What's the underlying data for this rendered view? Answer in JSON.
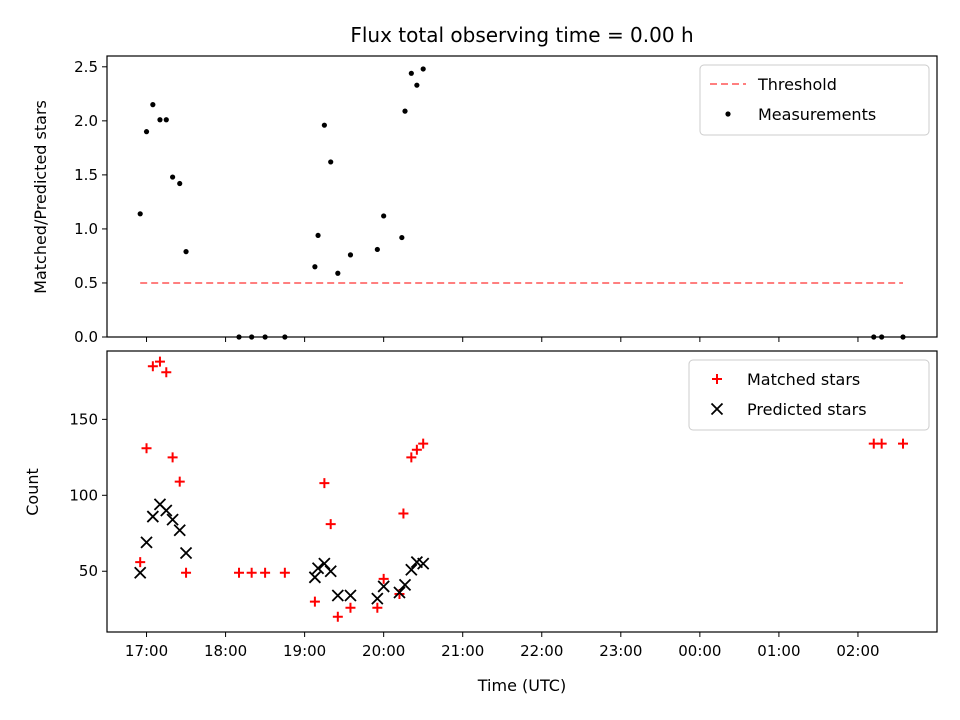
{
  "chart_data": {
    "title": "Flux total observing time = 0.00 h",
    "xlabel": "Time (UTC)",
    "x_unit": "hours",
    "x_range": [
      16.5,
      27.0
    ],
    "x_tick_values": [
      17,
      18,
      19,
      20,
      21,
      22,
      23,
      24,
      25,
      26
    ],
    "x_tick_labels": [
      "17:00",
      "18:00",
      "19:00",
      "20:00",
      "21:00",
      "22:00",
      "23:00",
      "00:00",
      "01:00",
      "02:00"
    ],
    "panels": [
      {
        "type": "scatter",
        "ylabel": "Matched/Predicted stars",
        "ylim": [
          0,
          2.6
        ],
        "yticks": [
          0,
          0.5,
          1.0,
          1.5,
          2.0,
          2.5
        ],
        "ytick_labels": [
          "0.0",
          "0.5",
          "1.0",
          "1.5",
          "2.0",
          "2.5"
        ],
        "legend_position": "upper-right",
        "series": [
          {
            "name": "Threshold",
            "kind": "dashed-line",
            "color": "#ff7f7f",
            "x": [
              16.92,
              26.57
            ],
            "y": [
              0.5,
              0.5
            ]
          },
          {
            "name": "Measurements",
            "kind": "dot",
            "color": "#000000",
            "x": [
              16.92,
              17.0,
              17.08,
              17.17,
              17.25,
              17.33,
              17.42,
              17.5,
              18.17,
              18.33,
              18.5,
              18.75,
              19.13,
              19.17,
              19.25,
              19.33,
              19.42,
              19.58,
              19.92,
              20.0,
              20.23,
              20.27,
              20.35,
              20.42,
              20.5,
              26.2,
              26.3,
              26.57
            ],
            "y": [
              1.14,
              1.9,
              2.15,
              2.01,
              2.01,
              1.48,
              1.42,
              0.79,
              0.0,
              0.0,
              0.0,
              0.0,
              0.65,
              0.94,
              1.96,
              1.62,
              0.59,
              0.76,
              0.81,
              1.12,
              0.92,
              2.09,
              2.44,
              2.33,
              2.48,
              0.0,
              0.0,
              0.0
            ]
          }
        ]
      },
      {
        "type": "scatter",
        "ylabel": "Count",
        "ylim": [
          10,
          195
        ],
        "yticks": [
          50,
          100,
          150
        ],
        "ytick_labels": [
          "50",
          "100",
          "150"
        ],
        "legend_position": "upper-right",
        "series": [
          {
            "name": "Matched stars",
            "kind": "plus",
            "color": "#ff0000",
            "x": [
              16.92,
              17.0,
              17.08,
              17.17,
              17.25,
              17.33,
              17.42,
              17.5,
              18.17,
              18.33,
              18.5,
              18.75,
              19.13,
              19.25,
              19.33,
              19.42,
              19.58,
              19.92,
              20.0,
              20.2,
              20.25,
              20.35,
              20.42,
              20.5,
              26.2,
              26.3,
              26.57
            ],
            "y": [
              56,
              131,
              185,
              188,
              181,
              125,
              109,
              49,
              49,
              49,
              49,
              49,
              30,
              108,
              81,
              20,
              26,
              26,
              45,
              35,
              88,
              125,
              130,
              134,
              134,
              134,
              134
            ]
          },
          {
            "name": "Predicted stars",
            "kind": "x",
            "color": "#000000",
            "x": [
              16.92,
              17.0,
              17.08,
              17.17,
              17.25,
              17.33,
              17.42,
              17.5,
              19.13,
              19.17,
              19.25,
              19.33,
              19.42,
              19.58,
              19.92,
              20.0,
              20.2,
              20.27,
              20.35,
              20.42,
              20.5
            ],
            "y": [
              49,
              69,
              86,
              94,
              90,
              84,
              77,
              62,
              46,
              52,
              55,
              50,
              34,
              34,
              32,
              40,
              36,
              41,
              51,
              56,
              55
            ]
          }
        ]
      }
    ]
  }
}
